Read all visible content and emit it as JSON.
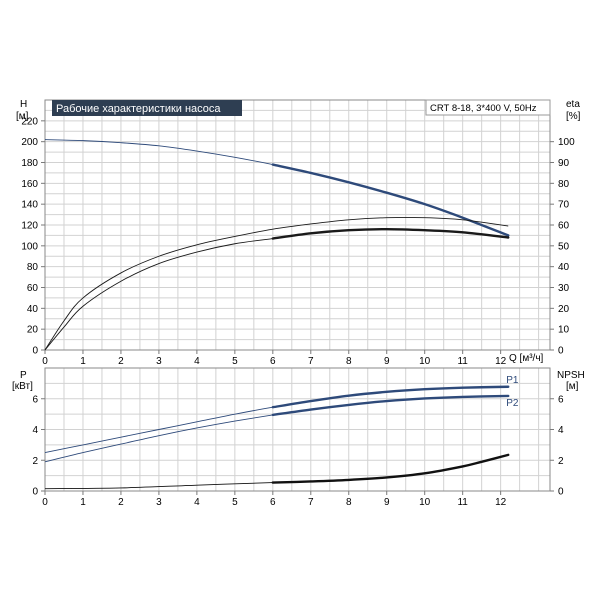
{
  "chart_data": [
    {
      "type": "line",
      "title": "Рабочие характеристики насоса",
      "model_label": "CRT 8-18, 3*400 V, 50Hz",
      "left_axis_label": [
        "H",
        "[м]"
      ],
      "right_axis_label": [
        "eta",
        "[%]"
      ],
      "xlabel": "Q [м³/ч]",
      "xlim": [
        0,
        13.3
      ],
      "ylim": [
        0,
        240
      ],
      "y2lim": [
        0,
        120
      ],
      "x_ticks": [
        0,
        1,
        2,
        3,
        4,
        5,
        6,
        7,
        8,
        9,
        10,
        11,
        12
      ],
      "y_ticks": [
        0,
        20,
        40,
        60,
        80,
        100,
        120,
        140,
        160,
        180,
        200,
        220
      ],
      "y2_ticks": [
        0,
        10,
        20,
        30,
        40,
        50,
        60,
        70,
        80,
        90,
        100
      ],
      "grid": true,
      "colors": {
        "head": "#2e4a7a",
        "eff": "#1a1a1a",
        "title_bg": "#2e3e52"
      },
      "series": [
        {
          "key": "head",
          "axis": "left",
          "x": [
            0,
            1,
            2,
            3,
            4,
            5,
            6,
            7,
            8,
            9,
            10,
            11,
            12.2
          ],
          "y": [
            202,
            201,
            199,
            196,
            191,
            185,
            178,
            170,
            161,
            151,
            140,
            127,
            110
          ],
          "bold_from": 6
        },
        {
          "key": "eff",
          "axis": "right",
          "x": [
            0,
            0.5,
            1,
            2,
            3,
            4,
            5,
            6,
            7,
            8,
            9,
            10,
            11,
            12.2
          ],
          "y": [
            0,
            14,
            25,
            37,
            45,
            50.5,
            54.5,
            58,
            60.5,
            62.5,
            63.5,
            63.5,
            62.5,
            59.5
          ],
          "bold_from": -1
        },
        {
          "key": "eff",
          "axis": "right",
          "x": [
            0,
            0.5,
            1,
            2,
            3,
            4,
            5,
            6,
            7,
            8,
            9,
            10,
            11,
            12.2
          ],
          "y": [
            0,
            11,
            21,
            33,
            41.5,
            47,
            51,
            53.5,
            56,
            57.5,
            58,
            57.5,
            56.5,
            54
          ],
          "bold_from": 6
        }
      ]
    },
    {
      "type": "line",
      "left_axis_label": [
        "P",
        "[кВт]"
      ],
      "right_axis_label": [
        "NPSH",
        "[м]"
      ],
      "xlim": [
        0,
        13.3
      ],
      "ylim": [
        0,
        8
      ],
      "y2lim": [
        0,
        8
      ],
      "x_ticks": [
        0,
        1,
        2,
        3,
        4,
        5,
        6,
        7,
        8,
        9,
        10,
        11,
        12
      ],
      "y_ticks": [
        0,
        2,
        4,
        6
      ],
      "y2_ticks": [
        0,
        2,
        4,
        6
      ],
      "grid": true,
      "colors": {
        "power": "#2e4a7a",
        "npsh": "#111111"
      },
      "series": [
        {
          "key": "power",
          "name": "P1",
          "axis": "left",
          "x": [
            0,
            1,
            2,
            3,
            4,
            5,
            6,
            7,
            8,
            9,
            10,
            11,
            12.2
          ],
          "y": [
            2.5,
            3.0,
            3.5,
            4.0,
            4.5,
            5.0,
            5.45,
            5.85,
            6.2,
            6.45,
            6.62,
            6.72,
            6.78
          ],
          "bold_from": 6
        },
        {
          "key": "power",
          "name": "P2",
          "axis": "left",
          "x": [
            0,
            1,
            2,
            3,
            4,
            5,
            6,
            7,
            8,
            9,
            10,
            11,
            12.2
          ],
          "y": [
            1.9,
            2.5,
            3.05,
            3.6,
            4.1,
            4.55,
            4.95,
            5.3,
            5.6,
            5.85,
            6.02,
            6.12,
            6.18
          ],
          "bold_from": 6
        },
        {
          "key": "npsh",
          "axis": "right",
          "x": [
            0,
            2,
            4,
            6,
            7,
            8,
            9,
            10,
            11,
            11.5,
            12.2
          ],
          "y": [
            0.15,
            0.2,
            0.38,
            0.55,
            0.62,
            0.72,
            0.88,
            1.15,
            1.6,
            1.9,
            2.35
          ],
          "bold_from": 6
        }
      ]
    }
  ]
}
